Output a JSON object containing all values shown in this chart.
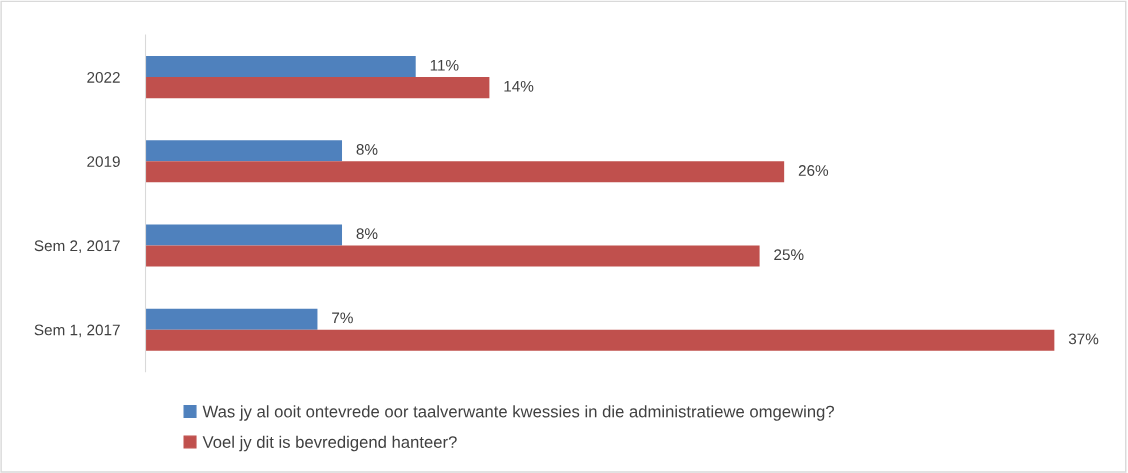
{
  "chart_data": {
    "type": "bar",
    "orientation": "horizontal",
    "categories": [
      "2022",
      "2019",
      "Sem 2, 2017",
      "Sem 1, 2017"
    ],
    "series": [
      {
        "name": "Was jy al ooit ontevrede oor taalverwante kwessies in die administratiewe omgewing?",
        "color": "#4f81bd",
        "values": [
          11,
          8,
          8,
          7
        ],
        "value_labels": [
          "11%",
          "8%",
          "8%",
          "7%"
        ]
      },
      {
        "name": "Voel jy dit is bevredigend hanteer?",
        "color": "#c0504d",
        "values": [
          14,
          26,
          25,
          37
        ],
        "value_labels": [
          "14%",
          "26%",
          "25%",
          "37%"
        ]
      }
    ],
    "legend": "bottom",
    "grid": false
  }
}
